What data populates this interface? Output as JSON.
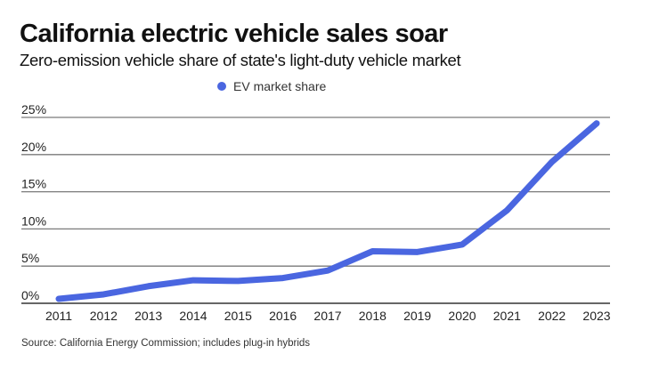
{
  "header": {
    "title": "California electric vehicle sales soar",
    "subtitle": "Zero-emission vehicle share of state's light-duty vehicle market"
  },
  "footer": {
    "source": "Source: California Energy Commission; includes plug-in hybrids"
  },
  "colors": {
    "series": "#4a66e0",
    "grid": "#7a7a7a",
    "axis": "#333333"
  },
  "chart_data": {
    "type": "line",
    "title": "California electric vehicle sales soar",
    "subtitle": "Zero-emission vehicle share of state's light-duty vehicle market",
    "xlabel": "",
    "ylabel": "",
    "x": [
      "2011",
      "2012",
      "2013",
      "2014",
      "2015",
      "2016",
      "2017",
      "2018",
      "2019",
      "2020",
      "2021",
      "2022",
      "2023"
    ],
    "series": [
      {
        "name": "EV market share",
        "values": [
          0.6,
          1.2,
          2.3,
          3.1,
          3.0,
          3.4,
          4.4,
          7.0,
          6.9,
          7.9,
          12.5,
          19.0,
          24.2
        ]
      }
    ],
    "ylim": [
      0,
      25
    ],
    "yticks": [
      0,
      5,
      10,
      15,
      20,
      25
    ],
    "ytick_labels": [
      "0%",
      "5%",
      "10%",
      "15%",
      "20%",
      "25%"
    ],
    "grid": true,
    "legend": {
      "entries": [
        "EV market share"
      ],
      "placement": "top-center"
    },
    "source": "Source: California Energy Commission; includes plug-in hybrids"
  }
}
